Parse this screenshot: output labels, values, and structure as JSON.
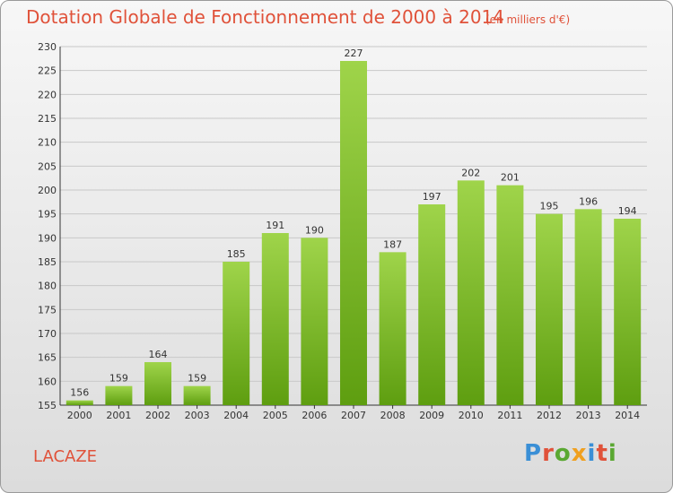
{
  "header": {
    "title": "Dotation Globale de Fonctionnement de 2000 à 2014",
    "subtitle": "(en milliers d'€)"
  },
  "footer": {
    "place": "LACAZE",
    "logo": "Proxiti"
  },
  "colors": {
    "title": "#e0523a",
    "bar_top": "#9fd44a",
    "bar_bottom": "#5e9e10",
    "logo_letters": [
      "#3a8fd6",
      "#e0523a",
      "#5aa832",
      "#f0a020",
      "#3a8fd6",
      "#e0523a",
      "#5aa832"
    ]
  },
  "chart_data": {
    "type": "bar",
    "categories": [
      "2000",
      "2001",
      "2002",
      "2003",
      "2004",
      "2005",
      "2006",
      "2007",
      "2008",
      "2009",
      "2010",
      "2011",
      "2012",
      "2013",
      "2014"
    ],
    "values": [
      156,
      159,
      164,
      159,
      185,
      191,
      190,
      227,
      187,
      197,
      202,
      201,
      195,
      196,
      194
    ],
    "ylim": [
      155,
      230
    ],
    "yticks": [
      155,
      160,
      165,
      170,
      175,
      180,
      185,
      190,
      195,
      200,
      205,
      210,
      215,
      220,
      225,
      230
    ],
    "grid": true
  }
}
